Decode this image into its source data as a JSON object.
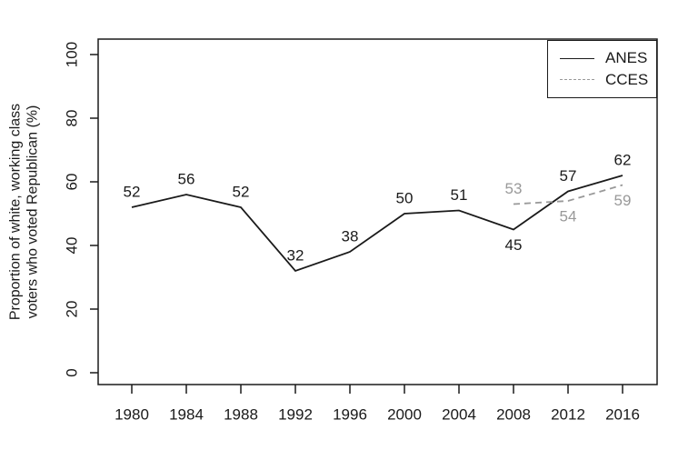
{
  "figure": {
    "background": "#ffffff",
    "axis_color": "#1a1a1a"
  },
  "chart_data": {
    "type": "line",
    "title": "",
    "xlabel": "",
    "ylabel": "Proportion of white, working class voters who voted Republican (%)",
    "ylabel_lines": [
      "Proportion of white, working class",
      "voters who voted Republican (%)"
    ],
    "x_ticks": [
      1980,
      1984,
      1988,
      1992,
      1996,
      2000,
      2004,
      2008,
      2012,
      2016
    ],
    "y_ticks": [
      0,
      20,
      40,
      60,
      80,
      100
    ],
    "ylim": [
      0,
      100
    ],
    "grid": false,
    "legend": {
      "position": "topright",
      "entries": [
        "ANES",
        "CCES"
      ]
    },
    "series": [
      {
        "name": "ANES",
        "color": "#1a1a1a",
        "line_style": "solid",
        "x": [
          1980,
          1984,
          1988,
          1992,
          1996,
          2000,
          2004,
          2008,
          2012,
          2016
        ],
        "values": [
          52,
          56,
          52,
          32,
          38,
          50,
          51,
          45,
          57,
          62
        ],
        "label_positions": [
          "above",
          "above",
          "above",
          "above",
          "above",
          "above",
          "above",
          "below",
          "above",
          "above"
        ]
      },
      {
        "name": "CCES",
        "color": "#999999",
        "line_style": "dashed",
        "x": [
          2008,
          2012,
          2016
        ],
        "values": [
          53,
          54,
          59
        ],
        "label_positions": [
          "above",
          "below",
          "below"
        ]
      }
    ]
  }
}
